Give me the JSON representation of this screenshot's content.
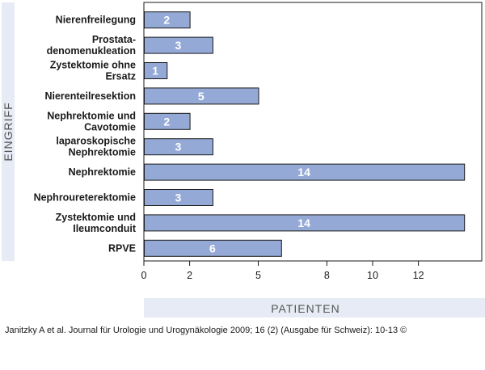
{
  "chart_data": {
    "type": "bar",
    "orientation": "horizontal",
    "categories": [
      [
        "Nierenfreilegung"
      ],
      [
        "Prostata-",
        "denomenukleation"
      ],
      [
        "Zystektomie ohne",
        "Ersatz"
      ],
      [
        "Nierenteilresektion"
      ],
      [
        "Nephrektomie und",
        "Cavotomie"
      ],
      [
        "laparoskopische",
        "Nephrektomie"
      ],
      [
        "Nephrektomie"
      ],
      [
        "Nephroureterektomie"
      ],
      [
        "Zystektomie und",
        "Ileumconduit"
      ],
      [
        "RPVE"
      ]
    ],
    "values": [
      2,
      3,
      1,
      5,
      2,
      3,
      14,
      3,
      14,
      6
    ],
    "data_labels": [
      "2",
      "3",
      "1",
      "5",
      "2",
      "3",
      "14",
      "3",
      "14",
      "6"
    ],
    "xlabel": "PATIENTEN",
    "ylabel": "EINGRIFF",
    "xticks": [
      0,
      2,
      5,
      8,
      10,
      12
    ],
    "xlim": [
      0,
      15
    ],
    "grid": false,
    "colors": {
      "bar_fill": "#95a9d6",
      "bar_stroke": "#1a1a1a",
      "axis_band": "#e6ebf5",
      "axis_title": "#555555"
    }
  },
  "source_text": "Janitzky A et al. Journal für Urologie und Urogynäkologie 2009; 16 (2) (Ausgabe für Schweiz): 10-13 ©"
}
